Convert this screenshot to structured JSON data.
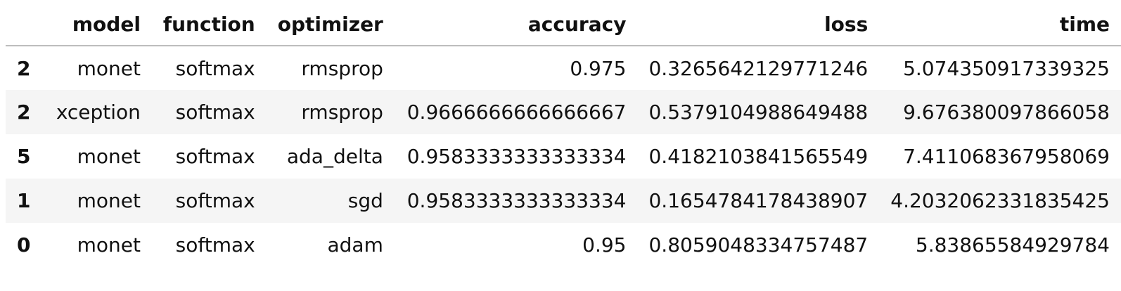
{
  "table": {
    "index_header": "",
    "columns": [
      "model",
      "function",
      "optimizer",
      "accuracy",
      "loss",
      "time"
    ],
    "rows": [
      {
        "index": "2",
        "model": "monet",
        "function": "softmax",
        "optimizer": "rmsprop",
        "accuracy": "0.975",
        "loss": "0.3265642129771246",
        "time": "5.074350917339325"
      },
      {
        "index": "2",
        "model": "xception",
        "function": "softmax",
        "optimizer": "rmsprop",
        "accuracy": "0.9666666666666667",
        "loss": "0.5379104988649488",
        "time": "9.676380097866058"
      },
      {
        "index": "5",
        "model": "monet",
        "function": "softmax",
        "optimizer": "ada_delta",
        "accuracy": "0.9583333333333334",
        "loss": "0.4182103841565549",
        "time": "7.411068367958069"
      },
      {
        "index": "1",
        "model": "monet",
        "function": "softmax",
        "optimizer": "sgd",
        "accuracy": "0.9583333333333334",
        "loss": "0.1654784178438907",
        "time": "4.2032062331835425"
      },
      {
        "index": "0",
        "model": "monet",
        "function": "softmax",
        "optimizer": "adam",
        "accuracy": "0.95",
        "loss": "0.8059048334757487",
        "time": "5.83865584929784"
      }
    ]
  },
  "colors": {
    "text": "#111111",
    "header_rule": "#bdbdbd",
    "row_stripe": "#f5f5f5",
    "background": "#ffffff"
  }
}
